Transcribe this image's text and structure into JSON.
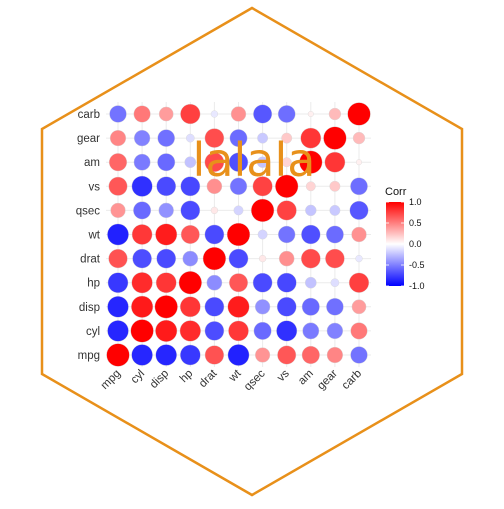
{
  "chart_data": {
    "type": "heatmap",
    "variables": [
      "mpg",
      "cyl",
      "disp",
      "hp",
      "drat",
      "wt",
      "qsec",
      "vs",
      "am",
      "gear",
      "carb"
    ],
    "matrix": [
      [
        1.0,
        -0.85,
        -0.85,
        -0.78,
        0.68,
        -0.87,
        0.42,
        0.66,
        0.6,
        0.48,
        -0.55
      ],
      [
        -0.85,
        1.0,
        0.9,
        0.83,
        -0.7,
        0.78,
        -0.59,
        -0.81,
        -0.52,
        -0.49,
        0.53
      ],
      [
        -0.85,
        0.9,
        1.0,
        0.79,
        -0.71,
        0.89,
        -0.43,
        -0.71,
        -0.59,
        -0.56,
        0.39
      ],
      [
        -0.78,
        0.83,
        0.79,
        1.0,
        -0.45,
        0.66,
        -0.71,
        -0.72,
        -0.24,
        -0.13,
        0.75
      ],
      [
        0.68,
        -0.7,
        -0.71,
        -0.45,
        1.0,
        -0.71,
        0.09,
        0.44,
        0.71,
        0.7,
        -0.09
      ],
      [
        -0.87,
        0.78,
        0.89,
        0.66,
        -0.71,
        1.0,
        -0.17,
        -0.55,
        -0.69,
        -0.58,
        0.43
      ],
      [
        0.42,
        -0.59,
        -0.43,
        -0.71,
        0.09,
        -0.17,
        1.0,
        0.74,
        -0.23,
        -0.21,
        -0.66
      ],
      [
        0.66,
        -0.81,
        -0.71,
        -0.72,
        0.44,
        -0.55,
        0.74,
        1.0,
        0.17,
        0.21,
        -0.57
      ],
      [
        0.6,
        -0.52,
        -0.59,
        -0.24,
        0.71,
        -0.69,
        -0.23,
        0.17,
        1.0,
        0.79,
        0.06
      ],
      [
        0.48,
        -0.49,
        -0.56,
        -0.13,
        0.7,
        -0.58,
        -0.21,
        0.21,
        0.79,
        1.0,
        0.27
      ],
      [
        -0.55,
        0.53,
        0.39,
        0.75,
        -0.09,
        0.43,
        -0.66,
        -0.57,
        0.06,
        0.27,
        1.0
      ]
    ],
    "color_scale": {
      "low": "#0000ff",
      "mid": "#ffffff",
      "high": "#ff0000",
      "limits": [
        -1,
        1
      ]
    },
    "legend": {
      "title": "Corr",
      "ticks": [
        1.0,
        0.5,
        0.0,
        -0.5,
        -1.0
      ],
      "tick_labels": [
        "1.0",
        "0.5",
        "0.0",
        "-0.5",
        "-1.0"
      ],
      "placement": "right"
    },
    "grid": true,
    "marker": "circle"
  },
  "overlay_text": "lalala",
  "colors": {
    "hexagon_border": "#e8901a",
    "overlay_text": "#e8901a",
    "gridline": "#ebebeb",
    "background": "#ffffff"
  }
}
